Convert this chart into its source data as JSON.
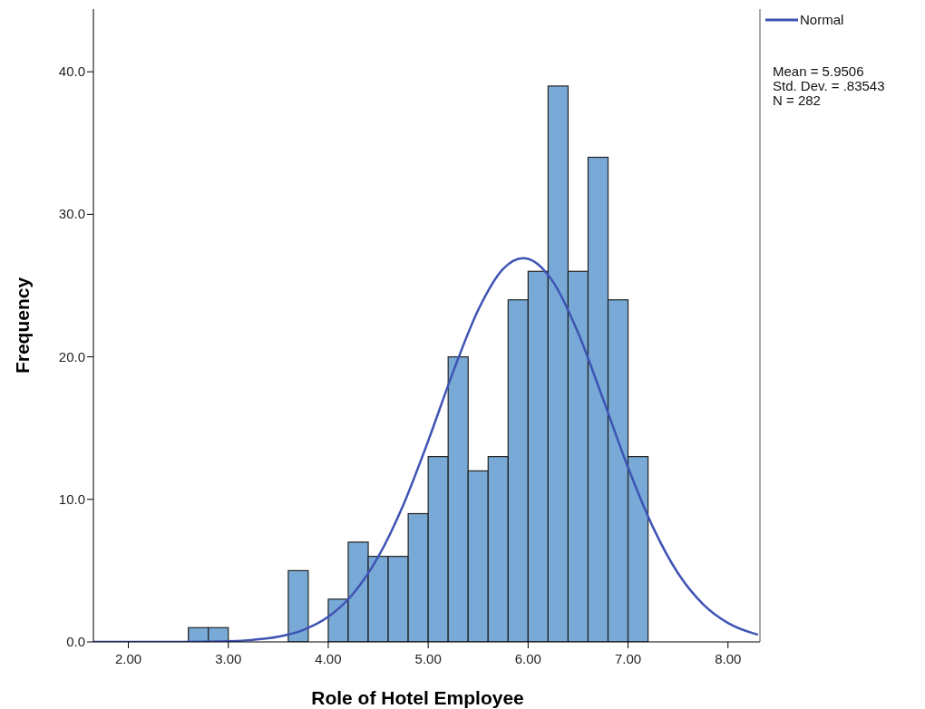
{
  "chart_data": {
    "type": "histogram",
    "xlabel": "Role of Hotel Employee",
    "ylabel": "Frequency",
    "bins": [
      2.6,
      2.8,
      3.0,
      3.2,
      3.4,
      3.6,
      3.8,
      4.0,
      4.2,
      4.4,
      4.6,
      4.8,
      5.0,
      5.2,
      5.4,
      5.6,
      5.8,
      6.0,
      6.2,
      6.4,
      6.6,
      6.8,
      7.0,
      7.2
    ],
    "values": [
      1,
      1,
      0,
      0,
      0,
      5,
      0,
      3,
      7,
      6,
      6,
      9,
      13,
      20,
      12,
      13,
      24,
      26,
      39,
      26,
      34,
      24,
      13
    ],
    "color": "#79a9d6",
    "series": [
      {
        "type": "line",
        "name": "Normal",
        "color": "#3e54b4",
        "x": [
          1.65,
          2.0,
          2.5,
          3.0,
          3.25,
          3.5,
          3.75,
          4.0,
          4.25,
          4.5,
          4.75,
          5.0,
          5.25,
          5.5,
          5.75,
          5.95,
          6.0,
          6.25,
          6.5,
          6.75,
          7.0,
          7.25,
          7.5,
          7.75,
          8.0,
          8.25,
          8.3
        ],
        "values": [
          0,
          0,
          0,
          0.05,
          0.15,
          0.37,
          0.84,
          1.76,
          3.39,
          5.97,
          9.59,
          14.1,
          18.95,
          23.28,
          26.17,
          26.93,
          26.88,
          25.26,
          21.69,
          17.04,
          12.24,
          8.04,
          4.82,
          2.65,
          1.33,
          0.61,
          0.51
        ]
      }
    ],
    "xlim": [
      1.65,
      8.32
    ],
    "ylim": [
      0,
      44.4
    ],
    "xticks": [
      {
        "value": 2,
        "label": "2.00"
      },
      {
        "value": 3,
        "label": "3.00"
      },
      {
        "value": 4,
        "label": "4.00"
      },
      {
        "value": 5,
        "label": "5.00"
      },
      {
        "value": 6,
        "label": "6.00"
      },
      {
        "value": 7,
        "label": "7.00"
      },
      {
        "value": 8,
        "label": "8.00"
      }
    ],
    "yticks": [
      {
        "value": 0,
        "label": "0.0"
      },
      {
        "value": 10,
        "label": "10.0"
      },
      {
        "value": 20,
        "label": "20.0"
      },
      {
        "value": 30,
        "label": "30.0"
      },
      {
        "value": 40,
        "label": "40.0"
      }
    ],
    "legend": "top right",
    "annotations": [
      "Mean = 5.9506",
      "Std. Dev. = .83543",
      "N = 282"
    ]
  }
}
